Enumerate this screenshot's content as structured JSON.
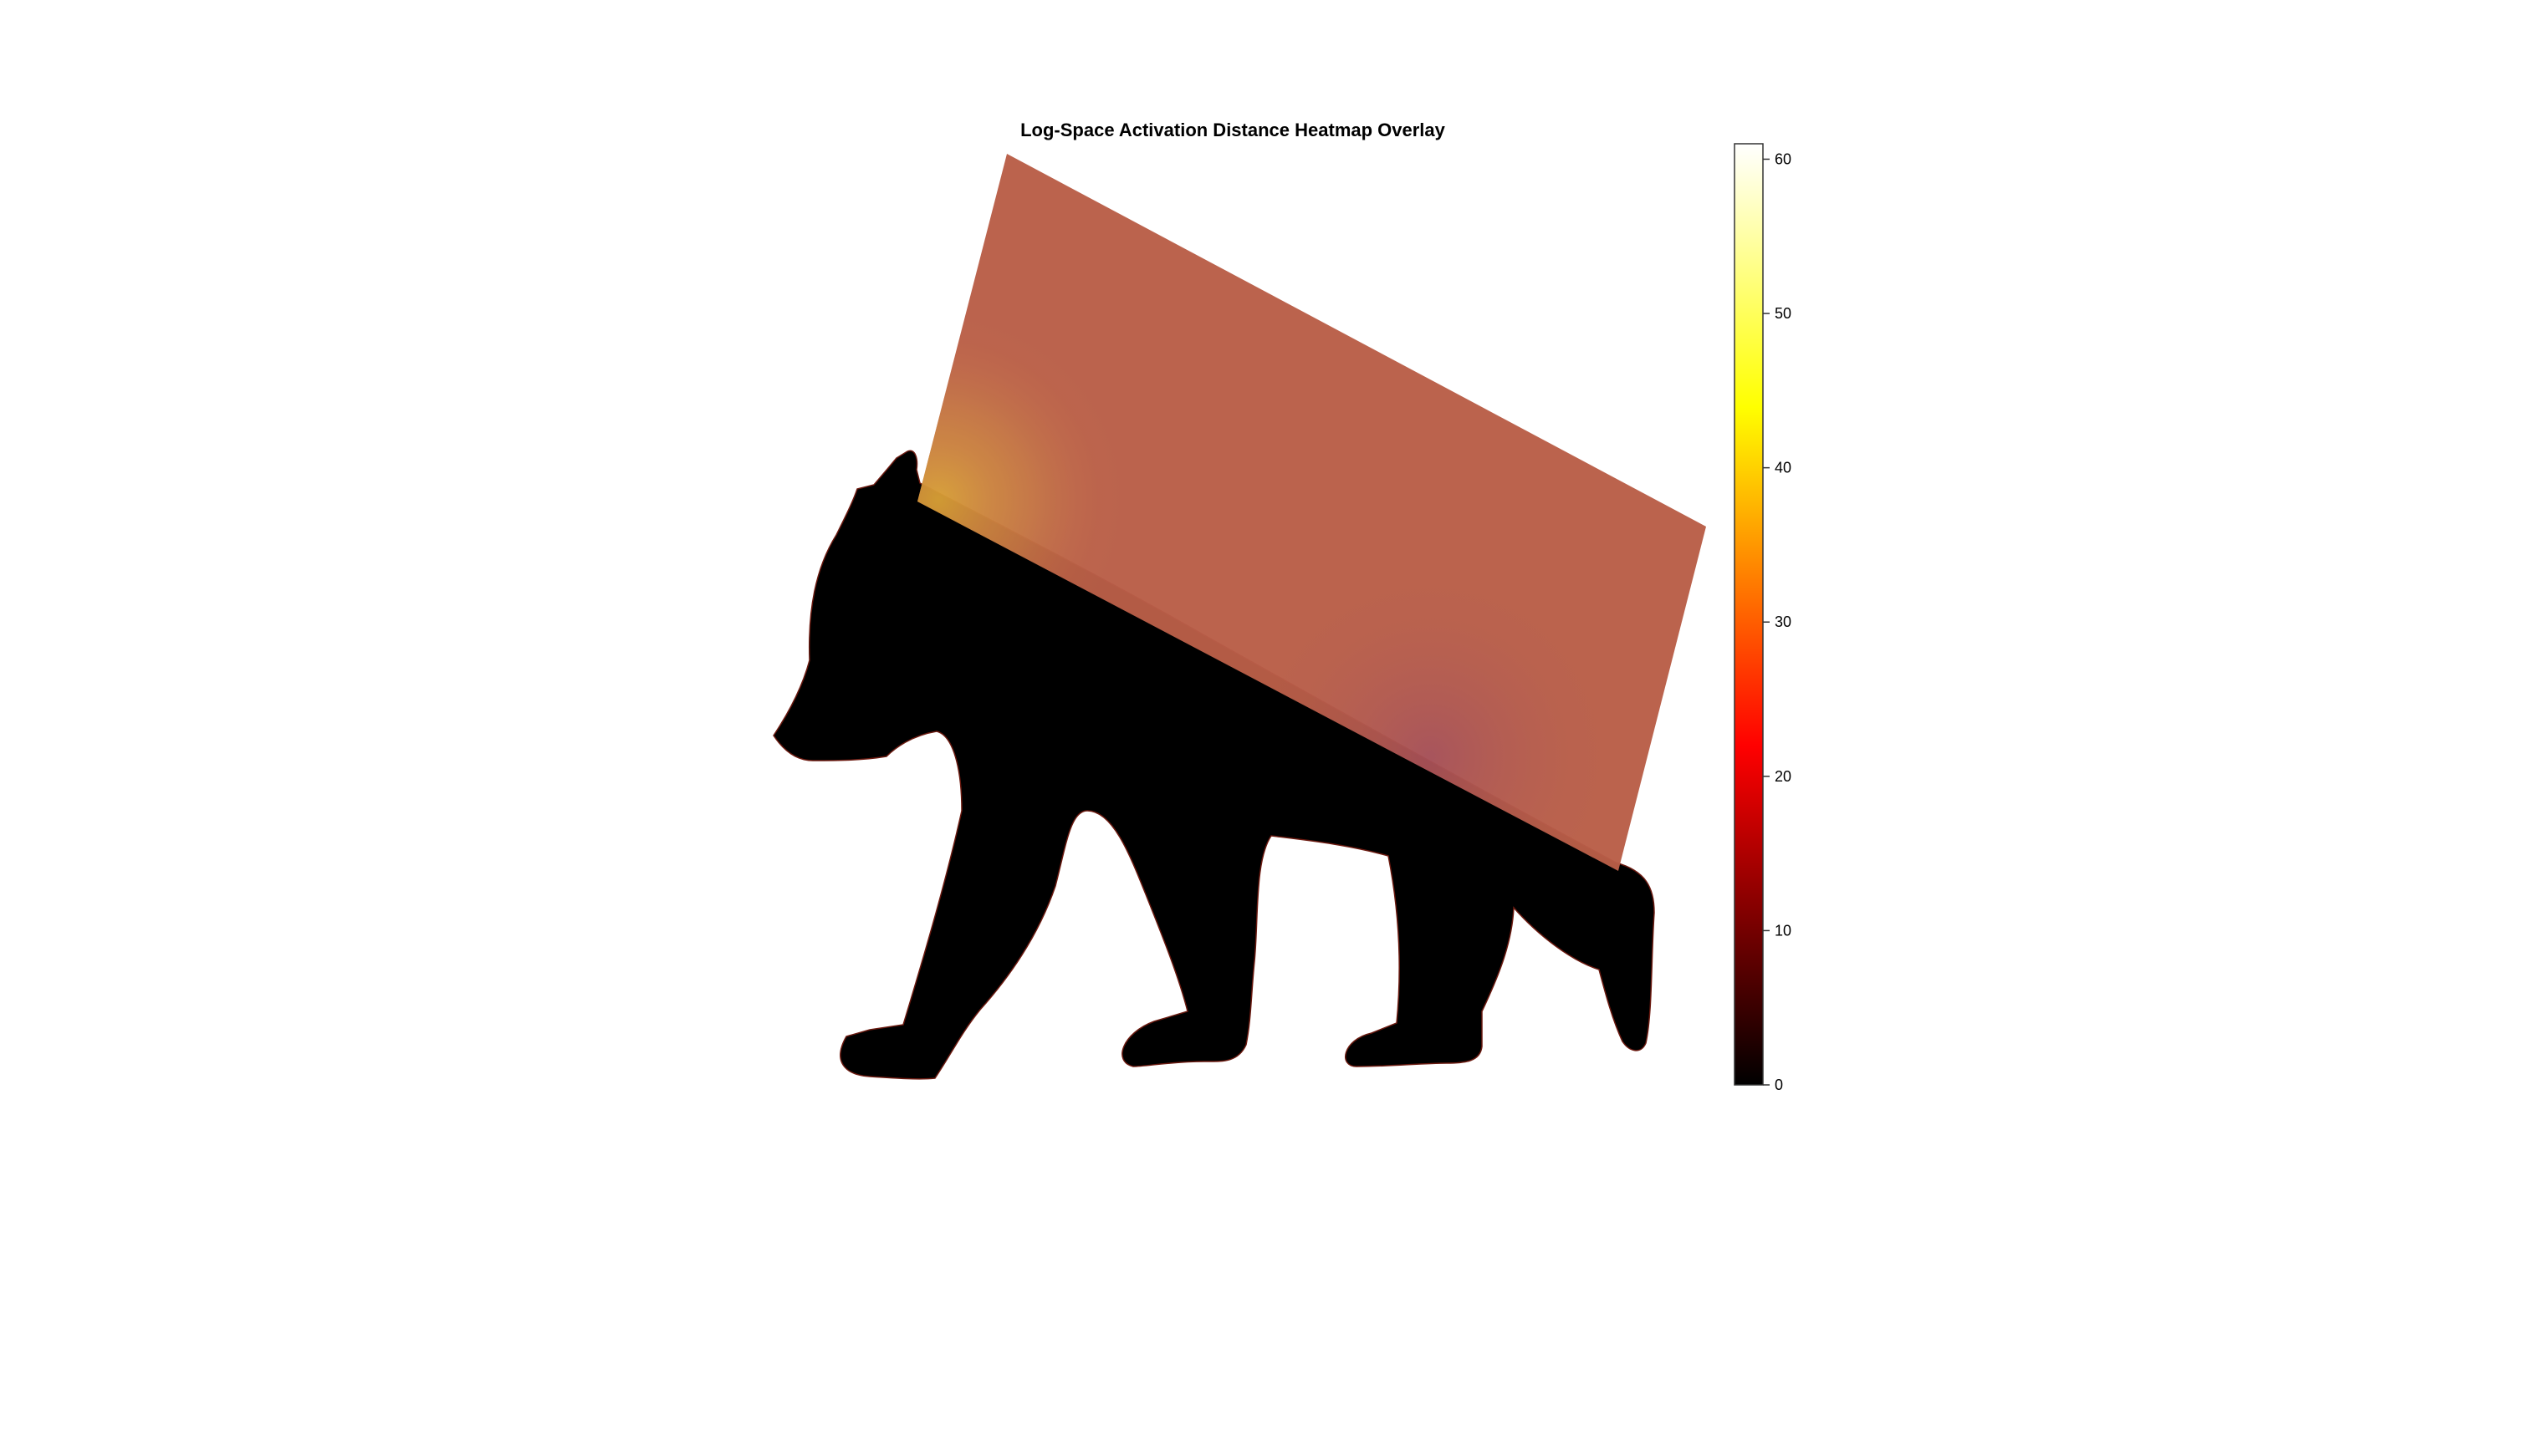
{
  "chart_data": {
    "type": "heatmap",
    "title": "Log-Space Activation Distance Heatmap Overlay",
    "colormap": "hot",
    "colorbar": {
      "position": "right",
      "range": [
        0,
        61
      ],
      "ticks": [
        0,
        10,
        20,
        30,
        40,
        50,
        60
      ],
      "tick_labels": [
        "0",
        "10",
        "20",
        "30",
        "40",
        "50",
        "60"
      ]
    },
    "overlay": {
      "base_color": "#b95e48",
      "hotspot_color": "#d69a3a",
      "cool_spot_color": "#a85058",
      "transparency": "semi-transparent"
    },
    "background_shape": "bear-silhouette",
    "background_color": "#000000"
  }
}
